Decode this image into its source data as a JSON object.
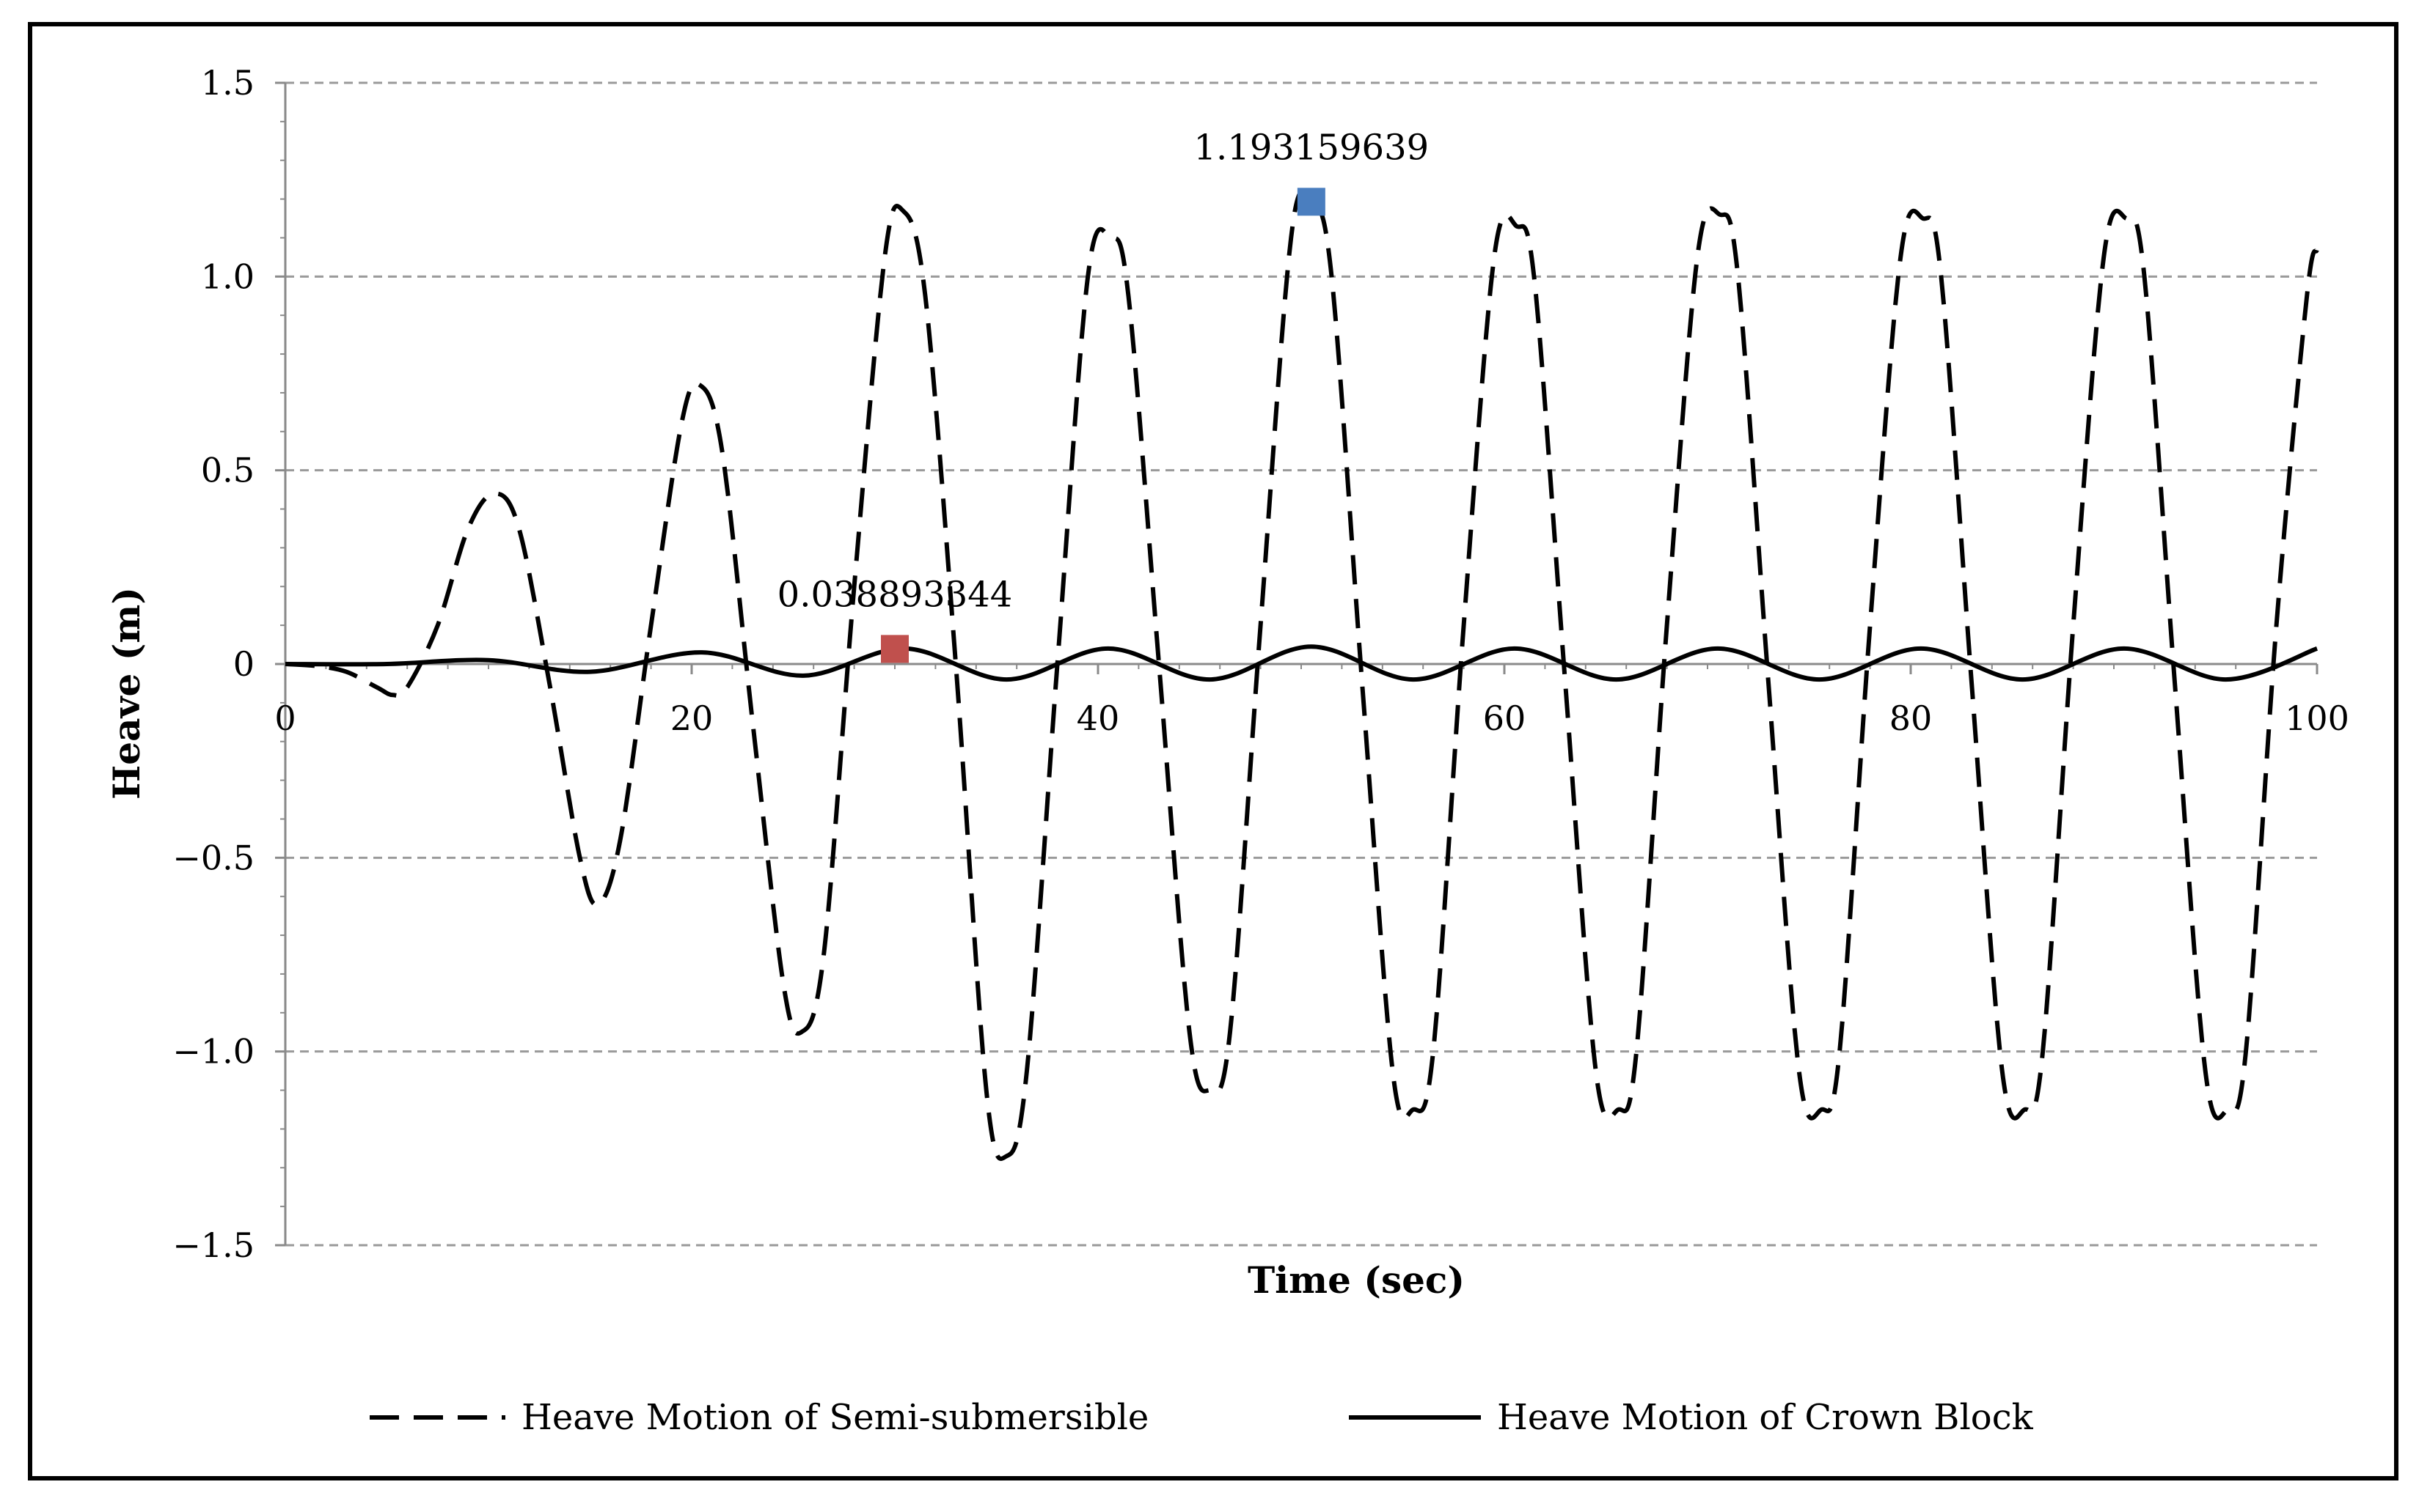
{
  "chart_data": {
    "type": "line",
    "title": "",
    "xlabel": "Time (sec)",
    "ylabel": "Heave (m)",
    "xlim": [
      0,
      100
    ],
    "ylim": [
      -1.5,
      1.5
    ],
    "x_ticks": [
      "0",
      "20",
      "40",
      "60",
      "80",
      "100"
    ],
    "y_ticks": [
      "1.5",
      "1.0",
      "0.5",
      "0",
      "−0.5",
      "−1.0",
      "−1.5"
    ],
    "grid": "horizontal-dashed",
    "legend_position": "bottom",
    "series": [
      {
        "name": "Heave Motion of Semi-submersible",
        "style": "dashed",
        "color": "#000000",
        "x": [
          0,
          1.5,
          3,
          4.5,
          5.3,
          6,
          7.5,
          9,
          10.3,
          11.5,
          13,
          14.5,
          15.4,
          16.5,
          18,
          19.5,
          20.4,
          21.5,
          23,
          24.5,
          25.4,
          26.5,
          28,
          29.5,
          30.4,
          31.5,
          33,
          34.5,
          35.5,
          36.5,
          38,
          39.5,
          40.6,
          41.5,
          43,
          44.5,
          45.5,
          46.5,
          48,
          49.5,
          50.5,
          51.5,
          53,
          54.5,
          55.5,
          56.5,
          58,
          59.5,
          60.6,
          61.5,
          63,
          64.5,
          65.6,
          66.5,
          68,
          69.5,
          70.6,
          71.5,
          73,
          74.5,
          75.6,
          76.5,
          78,
          79.5,
          80.6,
          81.5,
          83,
          84.5,
          85.6,
          86.5,
          88,
          89.5,
          90.6,
          91.5,
          93,
          94.5,
          95.6,
          96.5,
          98,
          99.5,
          100
        ],
        "y": [
          0,
          -0.005,
          -0.02,
          -0.06,
          -0.08,
          -0.06,
          0.1,
          0.35,
          0.44,
          0.35,
          -0.05,
          -0.5,
          -0.62,
          -0.45,
          0.1,
          0.62,
          0.72,
          0.55,
          -0.15,
          -0.82,
          -0.95,
          -0.75,
          0.2,
          1.05,
          1.17,
          0.95,
          0.0,
          -1.1,
          -1.27,
          -1.05,
          0.0,
          1.0,
          1.1,
          0.95,
          0.0,
          -0.95,
          -1.1,
          -0.95,
          0.1,
          1.1,
          1.19,
          1.0,
          -0.05,
          -1.05,
          -1.15,
          -1.0,
          0.1,
          1.05,
          1.13,
          0.98,
          -0.05,
          -1.05,
          -1.15,
          -1.0,
          0.1,
          1.05,
          1.16,
          1.0,
          -0.05,
          -1.05,
          -1.15,
          -1.0,
          0.1,
          1.05,
          1.15,
          1.0,
          -0.05,
          -1.05,
          -1.15,
          -1.0,
          0.1,
          1.05,
          1.15,
          1.0,
          -0.05,
          -1.05,
          -1.15,
          -1.0,
          0.1,
          0.95,
          1.07
        ]
      },
      {
        "name": "Heave Motion of Crown Block",
        "style": "solid",
        "color": "#000000",
        "x": [
          0,
          5,
          10,
          15,
          20.5,
          25.5,
          30.5,
          35.5,
          40.5,
          45.5,
          50.5,
          55.5,
          60.5,
          65.5,
          70.5,
          75.5,
          80.5,
          85.5,
          90.5,
          95.5,
          100
        ],
        "y": [
          0,
          0,
          0.01,
          -0.02,
          0.03,
          -0.03,
          0.04,
          -0.04,
          0.04,
          -0.04,
          0.045,
          -0.04,
          0.04,
          -0.04,
          0.04,
          -0.04,
          0.04,
          -0.04,
          0.04,
          -0.04,
          0.04
        ]
      }
    ],
    "annotations": [
      {
        "label": "1.193159639",
        "x": 50.5,
        "y": 1.193,
        "marker_color": "#4a7ebf"
      },
      {
        "label": "0.038893344",
        "x": 30,
        "y": 0.039,
        "marker_color": "#c0504d"
      }
    ]
  }
}
